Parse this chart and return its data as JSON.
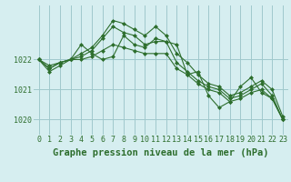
{
  "background_color": "#d6eef0",
  "grid_color": "#a0c8cc",
  "line_color": "#2d6e2d",
  "x": [
    0,
    1,
    2,
    3,
    4,
    5,
    6,
    7,
    8,
    9,
    10,
    11,
    12,
    13,
    14,
    15,
    16,
    17,
    18,
    19,
    20,
    21,
    22,
    23
  ],
  "series": [
    [
      1022.0,
      1021.7,
      1021.9,
      1022.0,
      1022.1,
      1022.3,
      1022.7,
      1023.1,
      1022.9,
      1022.8,
      1022.5,
      1022.6,
      1022.6,
      1021.9,
      1021.6,
      1021.3,
      1021.1,
      1021.0,
      1020.7,
      1020.8,
      1021.0,
      1021.2,
      1020.8,
      1020.0
    ],
    [
      1022.0,
      1021.7,
      1021.9,
      1022.0,
      1022.0,
      1022.1,
      1022.3,
      1022.5,
      1022.4,
      1022.3,
      1022.2,
      1022.2,
      1022.2,
      1021.7,
      1021.5,
      1021.2,
      1021.0,
      1020.9,
      1020.6,
      1020.7,
      1020.9,
      1021.0,
      1020.7,
      1020.0
    ],
    [
      1022.0,
      1021.8,
      1021.9,
      1022.0,
      1022.2,
      1022.4,
      1022.8,
      1023.3,
      1023.2,
      1023.0,
      1022.8,
      1023.1,
      1022.8,
      1022.2,
      1021.9,
      1021.5,
      1021.2,
      1021.1,
      1020.8,
      1020.9,
      1021.1,
      1021.3,
      1021.0,
      1020.1
    ],
    [
      1022.0,
      1021.6,
      1021.8,
      1022.0,
      1022.5,
      1022.2,
      1022.0,
      1022.1,
      1022.8,
      1022.5,
      1022.4,
      1022.7,
      1022.6,
      1022.5,
      1021.5,
      1021.6,
      1020.8,
      1020.4,
      1020.6,
      1021.1,
      1021.4,
      1020.9,
      1020.7,
      1020.0
    ]
  ],
  "xlabel": "Graphe pression niveau de la mer (hPa)",
  "xlabel_color": "#2d6e2d",
  "ylabel_ticks": [
    1020,
    1021,
    1022
  ],
  "ylim": [
    1019.5,
    1023.8
  ],
  "xlim": [
    -0.5,
    23.5
  ],
  "tick_label_color": "#2d6e2d",
  "tick_fontsize": 6.0,
  "xlabel_fontsize": 7.5,
  "marker": "D",
  "marker_size": 2.0,
  "linewidth": 0.8
}
